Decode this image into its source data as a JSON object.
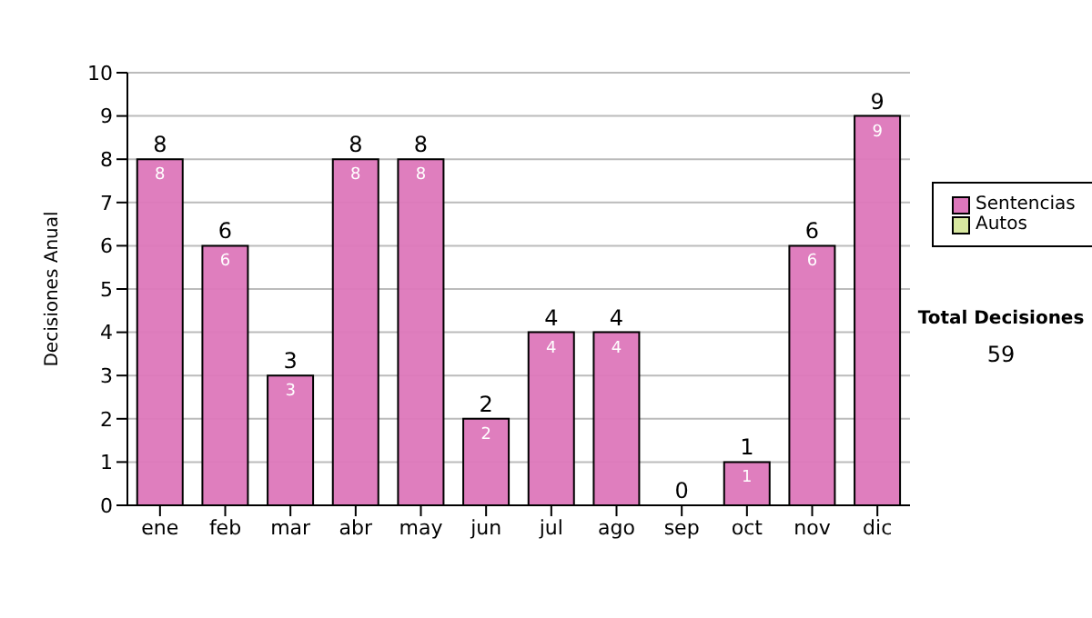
{
  "chart_data": {
    "type": "bar",
    "ylabel": "Decisiones Anual",
    "categories": [
      "ene",
      "feb",
      "mar",
      "abr",
      "may",
      "jun",
      "jul",
      "ago",
      "sep",
      "oct",
      "nov",
      "dic"
    ],
    "series": [
      {
        "name": "Sentencias",
        "color": "#dd77bb",
        "values": [
          8,
          6,
          3,
          8,
          8,
          2,
          4,
          4,
          0,
          1,
          6,
          9
        ],
        "value_labels": [
          "8",
          "6",
          "3",
          "8",
          "8",
          "2",
          "4",
          "4",
          null,
          "1",
          "6",
          "9"
        ]
      },
      {
        "name": "Autos",
        "color": "#d8e8a0",
        "values": [
          0,
          0,
          0,
          0,
          0,
          0,
          0,
          0,
          0,
          0,
          0,
          0
        ]
      }
    ],
    "stacked": true,
    "totals": [
      "8",
      "6",
      "3",
      "8",
      "8",
      "2",
      "4",
      "4",
      "0",
      "1",
      "6",
      "9"
    ],
    "ylim": [
      0,
      10
    ],
    "yticks": [
      0,
      1,
      2,
      3,
      4,
      5,
      6,
      7,
      8,
      9,
      10
    ],
    "grid": "y",
    "legend": "right",
    "annotations": [
      "Total Decisiones",
      "59"
    ]
  }
}
